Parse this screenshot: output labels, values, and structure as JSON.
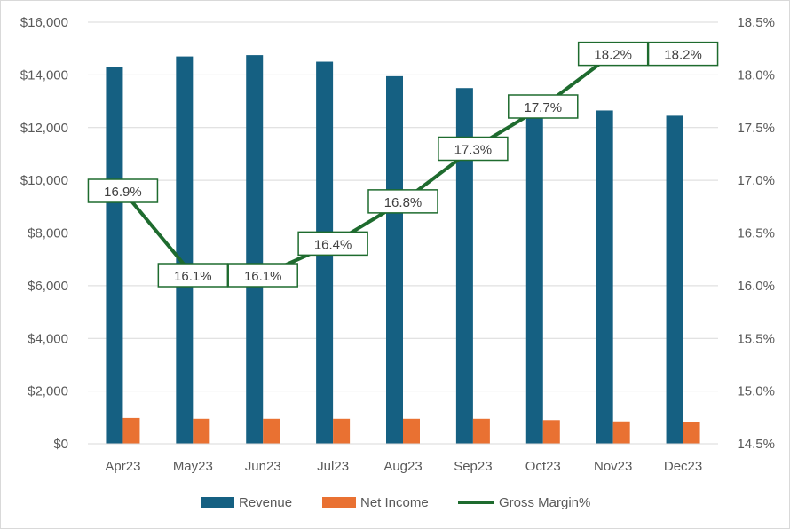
{
  "chart_data": {
    "type": "bar",
    "categories": [
      "Apr23",
      "May23",
      "Jun23",
      "Jul23",
      "Aug23",
      "Sep23",
      "Oct23",
      "Nov23",
      "Dec23"
    ],
    "series": [
      {
        "name": "Revenue",
        "type": "bar",
        "axis": "left",
        "color": "#156082",
        "values": [
          14300,
          14700,
          14750,
          14500,
          13950,
          13500,
          12700,
          12650,
          12450
        ]
      },
      {
        "name": "Net Income",
        "type": "bar",
        "axis": "left",
        "color": "#E97132",
        "values": [
          980,
          950,
          950,
          950,
          950,
          950,
          900,
          850,
          830
        ]
      },
      {
        "name": "Gross Margin%",
        "type": "line",
        "axis": "right",
        "color": "#1E6B2E",
        "values": [
          16.9,
          16.1,
          16.1,
          16.4,
          16.8,
          17.3,
          17.7,
          18.2,
          18.2
        ],
        "labels": [
          "16.9%",
          "16.1%",
          "16.1%",
          "16.4%",
          "16.8%",
          "17.3%",
          "17.7%",
          "18.2%",
          "18.2%"
        ]
      }
    ],
    "ylim": [
      0,
      16000
    ],
    "y2lim": [
      14.5,
      18.5
    ],
    "yticks": [
      "$0",
      "$2,000",
      "$4,000",
      "$6,000",
      "$8,000",
      "$10,000",
      "$12,000",
      "$14,000",
      "$16,000"
    ],
    "y2ticks": [
      "14.5%",
      "15.0%",
      "15.5%",
      "16.0%",
      "16.5%",
      "17.0%",
      "17.5%",
      "18.0%",
      "18.5%"
    ],
    "grid": true,
    "legend_position": "bottom"
  }
}
